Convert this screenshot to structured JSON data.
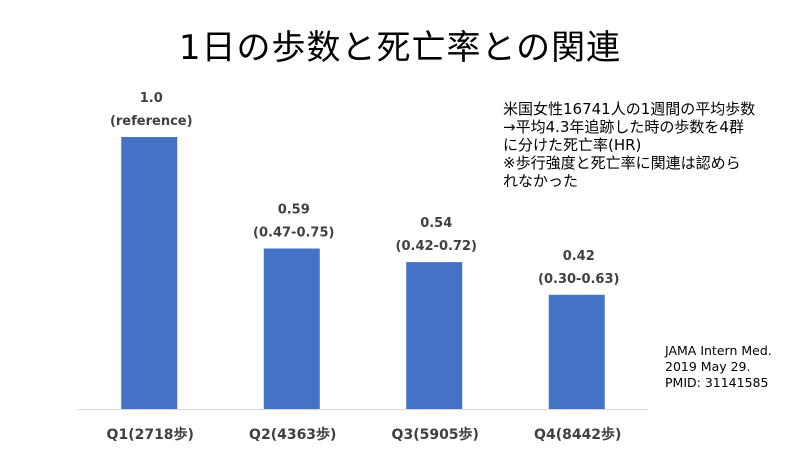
{
  "title": "1日の歩数と死亡率との関連",
  "note": {
    "lines": [
      "米国女性16741人の1週間の平均歩数",
      "→平均4.3年追跡した時の歩数を4群",
      "に分けた死亡率(HR)",
      "※歩行強度と死亡率に関連は認めら",
      "れなかった"
    ]
  },
  "source": {
    "lines": [
      "JAMA Intern Med.",
      "2019 May 29.",
      "PMID: 31141585"
    ]
  },
  "colors": {
    "bar": "#4472c4",
    "axis": "#d9d9d9",
    "text": "#000000",
    "label": "#404040"
  },
  "chart_data": {
    "type": "bar",
    "categories": [
      "Q1(2718歩)",
      "Q2(4363歩)",
      "Q3(5905歩)",
      "Q4(8442歩)"
    ],
    "values": [
      1.0,
      0.59,
      0.54,
      0.42
    ],
    "value_labels": [
      "1.0",
      "0.59",
      "0.54",
      "0.42"
    ],
    "ci_labels": [
      "(reference)",
      "(0.47-0.75)",
      "(0.42-0.72)",
      "(0.30-0.63)"
    ],
    "title": "1日の歩数と死亡率との関連",
    "xlabel": "",
    "ylabel": "",
    "ylim": [
      0,
      1.0
    ],
    "grid": false
  }
}
